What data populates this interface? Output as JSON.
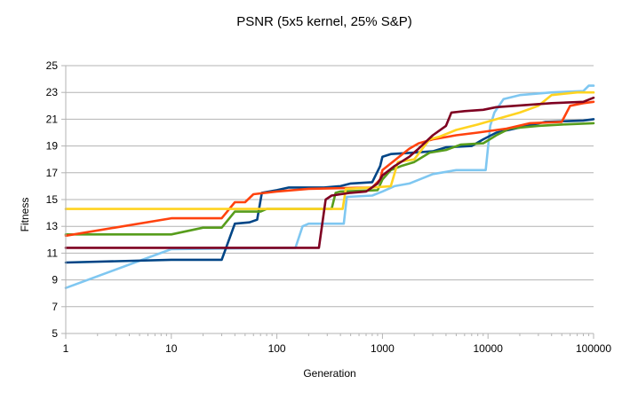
{
  "chart_data": {
    "type": "line",
    "title": "PSNR (5x5 kernel, 25% S&P)",
    "xlabel": "Generation",
    "ylabel": "Fitness",
    "x_scale": "log",
    "xlim": [
      1,
      100000
    ],
    "ylim": [
      5,
      25
    ],
    "x_ticks": [
      1,
      10,
      100,
      1000,
      10000,
      100000
    ],
    "x_tick_labels": [
      "1",
      "10",
      "100",
      "1000",
      "10000",
      "100000"
    ],
    "y_ticks": [
      5,
      7,
      9,
      11,
      13,
      15,
      17,
      19,
      21,
      23,
      25
    ],
    "y_tick_labels": [
      "5",
      "7",
      "9",
      "11",
      "13",
      "15",
      "17",
      "19",
      "21",
      "23",
      "25"
    ],
    "grid": "horizontal",
    "series": [
      {
        "color": "#7fc7f1",
        "points": [
          [
            1,
            8.4
          ],
          [
            10,
            11.3
          ],
          [
            150,
            11.4
          ],
          [
            175,
            13.0
          ],
          [
            200,
            13.2
          ],
          [
            430,
            13.2
          ],
          [
            460,
            15.2
          ],
          [
            800,
            15.3
          ],
          [
            1000,
            15.6
          ],
          [
            1300,
            16.0
          ],
          [
            1800,
            16.2
          ],
          [
            3000,
            16.9
          ],
          [
            5000,
            17.2
          ],
          [
            9500,
            17.2
          ],
          [
            10500,
            20.5
          ],
          [
            11500,
            21.5
          ],
          [
            14000,
            22.5
          ],
          [
            20000,
            22.8
          ],
          [
            40000,
            23.0
          ],
          [
            80000,
            23.1
          ],
          [
            90000,
            23.5
          ],
          [
            100000,
            23.5
          ]
        ]
      },
      {
        "color": "#004586",
        "points": [
          [
            1,
            10.3
          ],
          [
            10,
            10.5
          ],
          [
            30,
            10.5
          ],
          [
            40,
            13.2
          ],
          [
            55,
            13.3
          ],
          [
            65,
            13.5
          ],
          [
            72,
            15.5
          ],
          [
            100,
            15.7
          ],
          [
            130,
            15.9
          ],
          [
            280,
            15.9
          ],
          [
            400,
            16.0
          ],
          [
            500,
            16.2
          ],
          [
            800,
            16.3
          ],
          [
            950,
            17.5
          ],
          [
            1000,
            18.2
          ],
          [
            1200,
            18.4
          ],
          [
            2000,
            18.5
          ],
          [
            3000,
            18.6
          ],
          [
            4000,
            18.9
          ],
          [
            7000,
            19.0
          ],
          [
            9000,
            19.5
          ],
          [
            12000,
            20.0
          ],
          [
            18000,
            20.3
          ],
          [
            35000,
            20.8
          ],
          [
            80000,
            20.9
          ],
          [
            100000,
            21.0
          ]
        ]
      },
      {
        "color": "#579d1c",
        "points": [
          [
            1,
            12.4
          ],
          [
            10,
            12.4
          ],
          [
            20,
            12.9
          ],
          [
            30,
            12.9
          ],
          [
            40,
            14.1
          ],
          [
            70,
            14.1
          ],
          [
            80,
            14.3
          ],
          [
            330,
            14.3
          ],
          [
            360,
            15.5
          ],
          [
            400,
            15.6
          ],
          [
            900,
            15.7
          ],
          [
            1000,
            16.5
          ],
          [
            1200,
            17.2
          ],
          [
            1500,
            17.5
          ],
          [
            2000,
            17.8
          ],
          [
            2800,
            18.5
          ],
          [
            4000,
            18.7
          ],
          [
            5500,
            19.1
          ],
          [
            9000,
            19.2
          ],
          [
            12000,
            19.8
          ],
          [
            16000,
            20.3
          ],
          [
            30000,
            20.5
          ],
          [
            50000,
            20.6
          ],
          [
            100000,
            20.7
          ]
        ]
      },
      {
        "color": "#ff420e",
        "points": [
          [
            1,
            12.3
          ],
          [
            10,
            13.6
          ],
          [
            30,
            13.6
          ],
          [
            40,
            14.8
          ],
          [
            50,
            14.8
          ],
          [
            60,
            15.4
          ],
          [
            100,
            15.6
          ],
          [
            200,
            15.8
          ],
          [
            800,
            15.9
          ],
          [
            950,
            16.5
          ],
          [
            1000,
            17.2
          ],
          [
            1200,
            17.7
          ],
          [
            1800,
            18.8
          ],
          [
            2200,
            19.2
          ],
          [
            3000,
            19.5
          ],
          [
            5000,
            19.8
          ],
          [
            8000,
            20.0
          ],
          [
            15000,
            20.3
          ],
          [
            25000,
            20.7
          ],
          [
            50000,
            20.8
          ],
          [
            60000,
            22.0
          ],
          [
            80000,
            22.2
          ],
          [
            100000,
            22.3
          ]
        ]
      },
      {
        "color": "#ffd320",
        "points": [
          [
            1,
            14.3
          ],
          [
            100,
            14.3
          ],
          [
            420,
            14.3
          ],
          [
            450,
            15.8
          ],
          [
            800,
            15.9
          ],
          [
            1200,
            16.0
          ],
          [
            1400,
            17.8
          ],
          [
            2000,
            18.0
          ],
          [
            2800,
            19.5
          ],
          [
            3500,
            19.7
          ],
          [
            5000,
            20.2
          ],
          [
            8000,
            20.6
          ],
          [
            12000,
            21.0
          ],
          [
            20000,
            21.5
          ],
          [
            30000,
            22.0
          ],
          [
            40000,
            22.8
          ],
          [
            70000,
            23.0
          ],
          [
            100000,
            23.0
          ]
        ]
      },
      {
        "color": "#7e0021",
        "points": [
          [
            1,
            11.4
          ],
          [
            100,
            11.4
          ],
          [
            250,
            11.4
          ],
          [
            290,
            15.0
          ],
          [
            330,
            15.3
          ],
          [
            500,
            15.5
          ],
          [
            700,
            15.6
          ],
          [
            900,
            16.2
          ],
          [
            1000,
            16.8
          ],
          [
            1300,
            17.5
          ],
          [
            1800,
            18.2
          ],
          [
            2200,
            18.8
          ],
          [
            3000,
            19.8
          ],
          [
            4000,
            20.5
          ],
          [
            4500,
            21.5
          ],
          [
            6000,
            21.6
          ],
          [
            9000,
            21.7
          ],
          [
            12000,
            21.9
          ],
          [
            18000,
            22.0
          ],
          [
            40000,
            22.2
          ],
          [
            80000,
            22.3
          ],
          [
            100000,
            22.6
          ]
        ]
      }
    ]
  }
}
